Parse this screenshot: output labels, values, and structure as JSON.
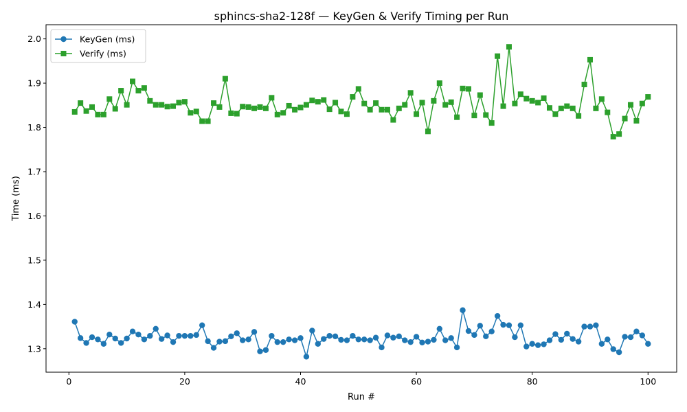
{
  "chart_data": {
    "type": "line",
    "title": "sphincs-sha2-128f — KeyGen & Verify Timing per Run",
    "xlabel": "Run #",
    "ylabel": "Time (ms)",
    "xlim": [
      -3.95,
      104.95
    ],
    "ylim": [
      1.247,
      2.032
    ],
    "xticks": [
      0,
      20,
      40,
      60,
      80,
      100
    ],
    "yticks": [
      1.3,
      1.4,
      1.5,
      1.6,
      1.7,
      1.8,
      1.9,
      2.0
    ],
    "xtick_labels": [
      "0",
      "20",
      "40",
      "60",
      "80",
      "100"
    ],
    "ytick_labels": [
      "1.3",
      "1.4",
      "1.5",
      "1.6",
      "1.7",
      "1.8",
      "1.9",
      "2.0"
    ],
    "grid": false,
    "legend_position": "top-left",
    "x": [
      1,
      2,
      3,
      4,
      5,
      6,
      7,
      8,
      9,
      10,
      11,
      12,
      13,
      14,
      15,
      16,
      17,
      18,
      19,
      20,
      21,
      22,
      23,
      24,
      25,
      26,
      27,
      28,
      29,
      30,
      31,
      32,
      33,
      34,
      35,
      36,
      37,
      38,
      39,
      40,
      41,
      42,
      43,
      44,
      45,
      46,
      47,
      48,
      49,
      50,
      51,
      52,
      53,
      54,
      55,
      56,
      57,
      58,
      59,
      60,
      61,
      62,
      63,
      64,
      65,
      66,
      67,
      68,
      69,
      70,
      71,
      72,
      73,
      74,
      75,
      76,
      77,
      78,
      79,
      80,
      81,
      82,
      83,
      84,
      85,
      86,
      87,
      88,
      89,
      90,
      91,
      92,
      93,
      94,
      95,
      96,
      97,
      98,
      99,
      100
    ],
    "series": [
      {
        "name": "KeyGen (ms)",
        "color": "#1f77b4",
        "marker": "circle",
        "values": [
          1.361,
          1.324,
          1.313,
          1.326,
          1.321,
          1.311,
          1.332,
          1.323,
          1.313,
          1.323,
          1.339,
          1.332,
          1.321,
          1.329,
          1.345,
          1.322,
          1.33,
          1.315,
          1.329,
          1.329,
          1.329,
          1.331,
          1.353,
          1.317,
          1.302,
          1.316,
          1.317,
          1.328,
          1.335,
          1.319,
          1.321,
          1.338,
          1.294,
          1.297,
          1.329,
          1.315,
          1.315,
          1.321,
          1.319,
          1.324,
          1.282,
          1.341,
          1.311,
          1.322,
          1.329,
          1.328,
          1.32,
          1.319,
          1.329,
          1.321,
          1.321,
          1.319,
          1.325,
          1.303,
          1.33,
          1.325,
          1.328,
          1.319,
          1.315,
          1.327,
          1.314,
          1.316,
          1.32,
          1.345,
          1.319,
          1.324,
          1.303,
          1.387,
          1.34,
          1.331,
          1.352,
          1.328,
          1.339,
          1.374,
          1.354,
          1.353,
          1.326,
          1.353,
          1.305,
          1.311,
          1.308,
          1.31,
          1.319,
          1.333,
          1.32,
          1.334,
          1.322,
          1.316,
          1.35,
          1.35,
          1.353,
          1.311,
          1.321,
          1.299,
          1.292,
          1.327,
          1.326,
          1.339,
          1.33,
          1.311
        ]
      },
      {
        "name": "Verify (ms)",
        "color": "#2ca02c",
        "marker": "square",
        "values": [
          1.835,
          1.855,
          1.837,
          1.846,
          1.829,
          1.829,
          1.864,
          1.842,
          1.883,
          1.851,
          1.904,
          1.883,
          1.889,
          1.86,
          1.851,
          1.851,
          1.847,
          1.848,
          1.856,
          1.858,
          1.833,
          1.836,
          1.814,
          1.814,
          1.855,
          1.846,
          1.91,
          1.832,
          1.831,
          1.847,
          1.846,
          1.843,
          1.846,
          1.843,
          1.867,
          1.829,
          1.833,
          1.849,
          1.84,
          1.845,
          1.851,
          1.861,
          1.858,
          1.862,
          1.841,
          1.856,
          1.836,
          1.83,
          1.869,
          1.887,
          1.854,
          1.84,
          1.855,
          1.84,
          1.84,
          1.817,
          1.843,
          1.851,
          1.878,
          1.83,
          1.856,
          1.791,
          1.86,
          1.9,
          1.851,
          1.857,
          1.823,
          1.888,
          1.887,
          1.827,
          1.873,
          1.828,
          1.81,
          1.961,
          1.848,
          1.982,
          1.854,
          1.875,
          1.865,
          1.86,
          1.856,
          1.866,
          1.844,
          1.83,
          1.843,
          1.848,
          1.843,
          1.826,
          1.897,
          1.953,
          1.843,
          1.864,
          1.834,
          1.779,
          1.785,
          1.82,
          1.851,
          1.815,
          1.854,
          1.869
        ]
      }
    ]
  }
}
